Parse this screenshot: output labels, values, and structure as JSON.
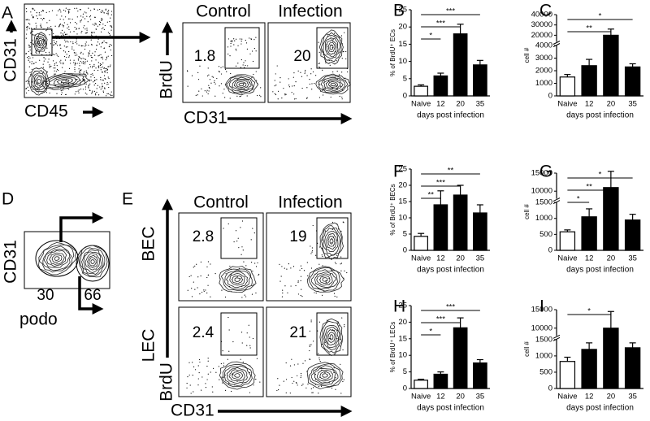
{
  "panel_labels": [
    "A",
    "B",
    "C",
    "D",
    "E",
    "F",
    "G",
    "H",
    "I"
  ],
  "flow": {
    "a": {
      "y_label": "CD31",
      "x_label": "CD45"
    },
    "b": {
      "columns": [
        "Control",
        "Infection"
      ],
      "y_label": "BrdU",
      "x_label": "CD31",
      "gates": [
        1.8,
        20
      ]
    },
    "d": {
      "y_label": "CD31",
      "x_label": "podo",
      "gates": [
        30,
        66
      ]
    },
    "e": {
      "columns": [
        "Control",
        "Infection"
      ],
      "rows": [
        "BEC",
        "LEC"
      ],
      "y_label": "BrdU",
      "x_label": "CD31",
      "gates": [
        [
          2.8,
          19
        ],
        [
          2.4,
          21
        ]
      ]
    }
  },
  "chart_data": [
    {
      "type": "bar",
      "ylabel": "% of BrdU⁺ ECs",
      "xlabel": "days post infection",
      "categories": [
        "Naive",
        "12",
        "20",
        "35"
      ],
      "values": [
        2.8,
        5.8,
        18,
        9
      ],
      "errors": [
        0.4,
        0.8,
        2.8,
        1.3
      ],
      "colors": [
        "#ffffff",
        "#000000",
        "#000000",
        "#000000"
      ],
      "ylim": [
        0,
        25
      ],
      "yticks": [
        0,
        5,
        10,
        15,
        20,
        25
      ],
      "significance": [
        {
          "between": [
            0,
            3
          ],
          "label": "***"
        },
        {
          "between": [
            0,
            2
          ],
          "label": "***"
        },
        {
          "between": [
            0,
            1
          ],
          "label": "*"
        }
      ]
    },
    {
      "type": "bar",
      "ylabel": "cell #",
      "xlabel": "days post infection",
      "categories": [
        "Naive",
        "12",
        "20",
        "35"
      ],
      "values": [
        1500,
        2400,
        20000,
        2300
      ],
      "errors": [
        200,
        500,
        6000,
        250
      ],
      "colors": [
        "#ffffff",
        "#000000",
        "#000000",
        "#000000"
      ],
      "ylim": [
        0,
        40000
      ],
      "ybreak": [
        4000,
        14000
      ],
      "yticks": [
        0,
        1000,
        2000,
        3000,
        4000,
        20000,
        30000,
        40000
      ],
      "significance": [
        {
          "between": [
            0,
            3
          ],
          "label": "*"
        },
        {
          "between": [
            0,
            2
          ],
          "label": "**"
        }
      ]
    },
    {
      "type": "bar",
      "ylabel": "% of BrdU⁺ BECs",
      "xlabel": "days post infection",
      "categories": [
        "Naive",
        "12",
        "20",
        "35"
      ],
      "values": [
        4.3,
        14,
        17,
        11.5
      ],
      "errors": [
        0.9,
        4.3,
        3,
        2.5
      ],
      "colors": [
        "#ffffff",
        "#000000",
        "#000000",
        "#000000"
      ],
      "ylim": [
        0,
        25
      ],
      "yticks": [
        0,
        5,
        10,
        15,
        20,
        25
      ],
      "significance": [
        {
          "between": [
            0,
            3
          ],
          "label": "**"
        },
        {
          "between": [
            0,
            2
          ],
          "label": "***"
        },
        {
          "between": [
            0,
            1
          ],
          "label": "**"
        }
      ]
    },
    {
      "type": "bar",
      "ylabel": "cell #",
      "xlabel": "days post infection",
      "categories": [
        "Naive",
        "12",
        "20",
        "35"
      ],
      "values": [
        580,
        1050,
        11000,
        950
      ],
      "errors": [
        60,
        250,
        4500,
        180
      ],
      "colors": [
        "#ffffff",
        "#000000",
        "#000000",
        "#000000"
      ],
      "ylim": [
        0,
        15000
      ],
      "ybreak": [
        1500,
        8000
      ],
      "yticks": [
        0,
        500,
        1000,
        1500,
        10000,
        15000
      ],
      "significance": [
        {
          "between": [
            0,
            3
          ],
          "label": "*"
        },
        {
          "between": [
            0,
            2
          ],
          "label": "**"
        },
        {
          "between": [
            0,
            1
          ],
          "label": "*"
        }
      ]
    },
    {
      "type": "bar",
      "ylabel": "% of BrdU⁺ LECs",
      "xlabel": "days post infection",
      "categories": [
        "Naive",
        "12",
        "20",
        "35"
      ],
      "values": [
        2.5,
        4.3,
        18.3,
        7.7
      ],
      "errors": [
        0.3,
        0.7,
        3,
        1
      ],
      "colors": [
        "#ffffff",
        "#000000",
        "#000000",
        "#000000"
      ],
      "ylim": [
        0,
        25
      ],
      "yticks": [
        0,
        5,
        10,
        15,
        20,
        25
      ],
      "significance": [
        {
          "between": [
            0,
            3
          ],
          "label": "***"
        },
        {
          "between": [
            0,
            2
          ],
          "label": "***"
        },
        {
          "between": [
            0,
            1
          ],
          "label": "*"
        }
      ]
    },
    {
      "type": "bar",
      "ylabel": "cell #",
      "xlabel": "days post infection",
      "categories": [
        "Naive",
        "12",
        "20",
        "35"
      ],
      "values": [
        830,
        1200,
        10000,
        1250
      ],
      "errors": [
        130,
        200,
        4500,
        150
      ],
      "colors": [
        "#ffffff",
        "#000000",
        "#000000",
        "#000000"
      ],
      "ylim": [
        0,
        15000
      ],
      "ybreak": [
        1500,
        8000
      ],
      "yticks": [
        0,
        500,
        1000,
        1500,
        10000,
        15000
      ],
      "significance": [
        {
          "between": [
            0,
            2
          ],
          "label": "*"
        }
      ]
    }
  ]
}
